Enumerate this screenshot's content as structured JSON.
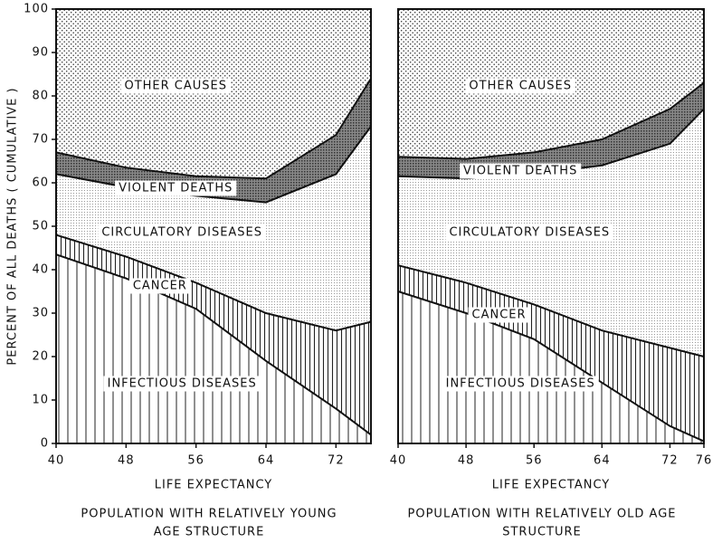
{
  "chart_data": [
    {
      "type": "stacked_area",
      "title": [
        "POPULATION WITH RELATIVELY YOUNG",
        "AGE STRUCTURE"
      ],
      "xlabel": "LIFE EXPECTANCY",
      "ylabel": "PERCENT OF ALL DEATHS ( CUMULATIVE )",
      "x": [
        40,
        48,
        56,
        64,
        72,
        76
      ],
      "xlim": [
        40,
        76
      ],
      "xticks": [
        40,
        48,
        56,
        64,
        72
      ],
      "ylim": [
        0,
        100
      ],
      "yticks": [
        0,
        10,
        20,
        30,
        40,
        50,
        60,
        70,
        80,
        90,
        100
      ],
      "series": [
        {
          "name": "INFECTIOUS DISEASES",
          "color": "#222222",
          "pattern": "vlines",
          "values": [
            43.5,
            38,
            31,
            19,
            8,
            2
          ]
        },
        {
          "name": "CANCER",
          "color": "#222222",
          "pattern": "vlines-dense",
          "values": [
            4.5,
            5,
            6,
            11,
            18,
            26
          ]
        },
        {
          "name": "CIRCULATORY DISEASES",
          "color": "#999999",
          "pattern": "stipple",
          "values": [
            14,
            16,
            20,
            25.5,
            36,
            45
          ]
        },
        {
          "name": "VIOLENT DEATHS",
          "color": "#333333",
          "pattern": "crosshatch",
          "values": [
            5,
            4.5,
            4.5,
            5.5,
            9,
            11
          ]
        },
        {
          "name": "OTHER CAUSES",
          "color": "#444444",
          "pattern": "dots",
          "values": [
            33,
            36.5,
            38.5,
            39,
            29,
            16
          ]
        }
      ]
    },
    {
      "type": "stacked_area",
      "title": [
        "POPULATION WITH RELATIVELY OLD AGE",
        "STRUCTURE"
      ],
      "xlabel": "LIFE EXPECTANCY",
      "x": [
        40,
        48,
        56,
        64,
        72,
        76
      ],
      "xlim": [
        40,
        76
      ],
      "xticks": [
        40,
        48,
        56,
        64,
        72,
        76
      ],
      "ylim": [
        0,
        100
      ],
      "series": [
        {
          "name": "INFECTIOUS DISEASES",
          "color": "#222222",
          "pattern": "vlines",
          "values": [
            35,
            30,
            24,
            14,
            4,
            0.5
          ]
        },
        {
          "name": "CANCER",
          "color": "#222222",
          "pattern": "vlines-dense",
          "values": [
            6,
            7,
            8,
            12,
            18,
            19.5
          ]
        },
        {
          "name": "CIRCULATORY DISEASES",
          "color": "#999999",
          "pattern": "stipple",
          "values": [
            20.5,
            24,
            30,
            38,
            47,
            57
          ]
        },
        {
          "name": "VIOLENT DEATHS",
          "color": "#333333",
          "pattern": "crosshatch",
          "values": [
            4.5,
            4.5,
            5,
            6,
            8,
            6
          ]
        },
        {
          "name": "OTHER CAUSES",
          "color": "#444444",
          "pattern": "dots",
          "values": [
            34,
            34.5,
            33,
            30,
            23,
            17
          ]
        }
      ]
    }
  ]
}
